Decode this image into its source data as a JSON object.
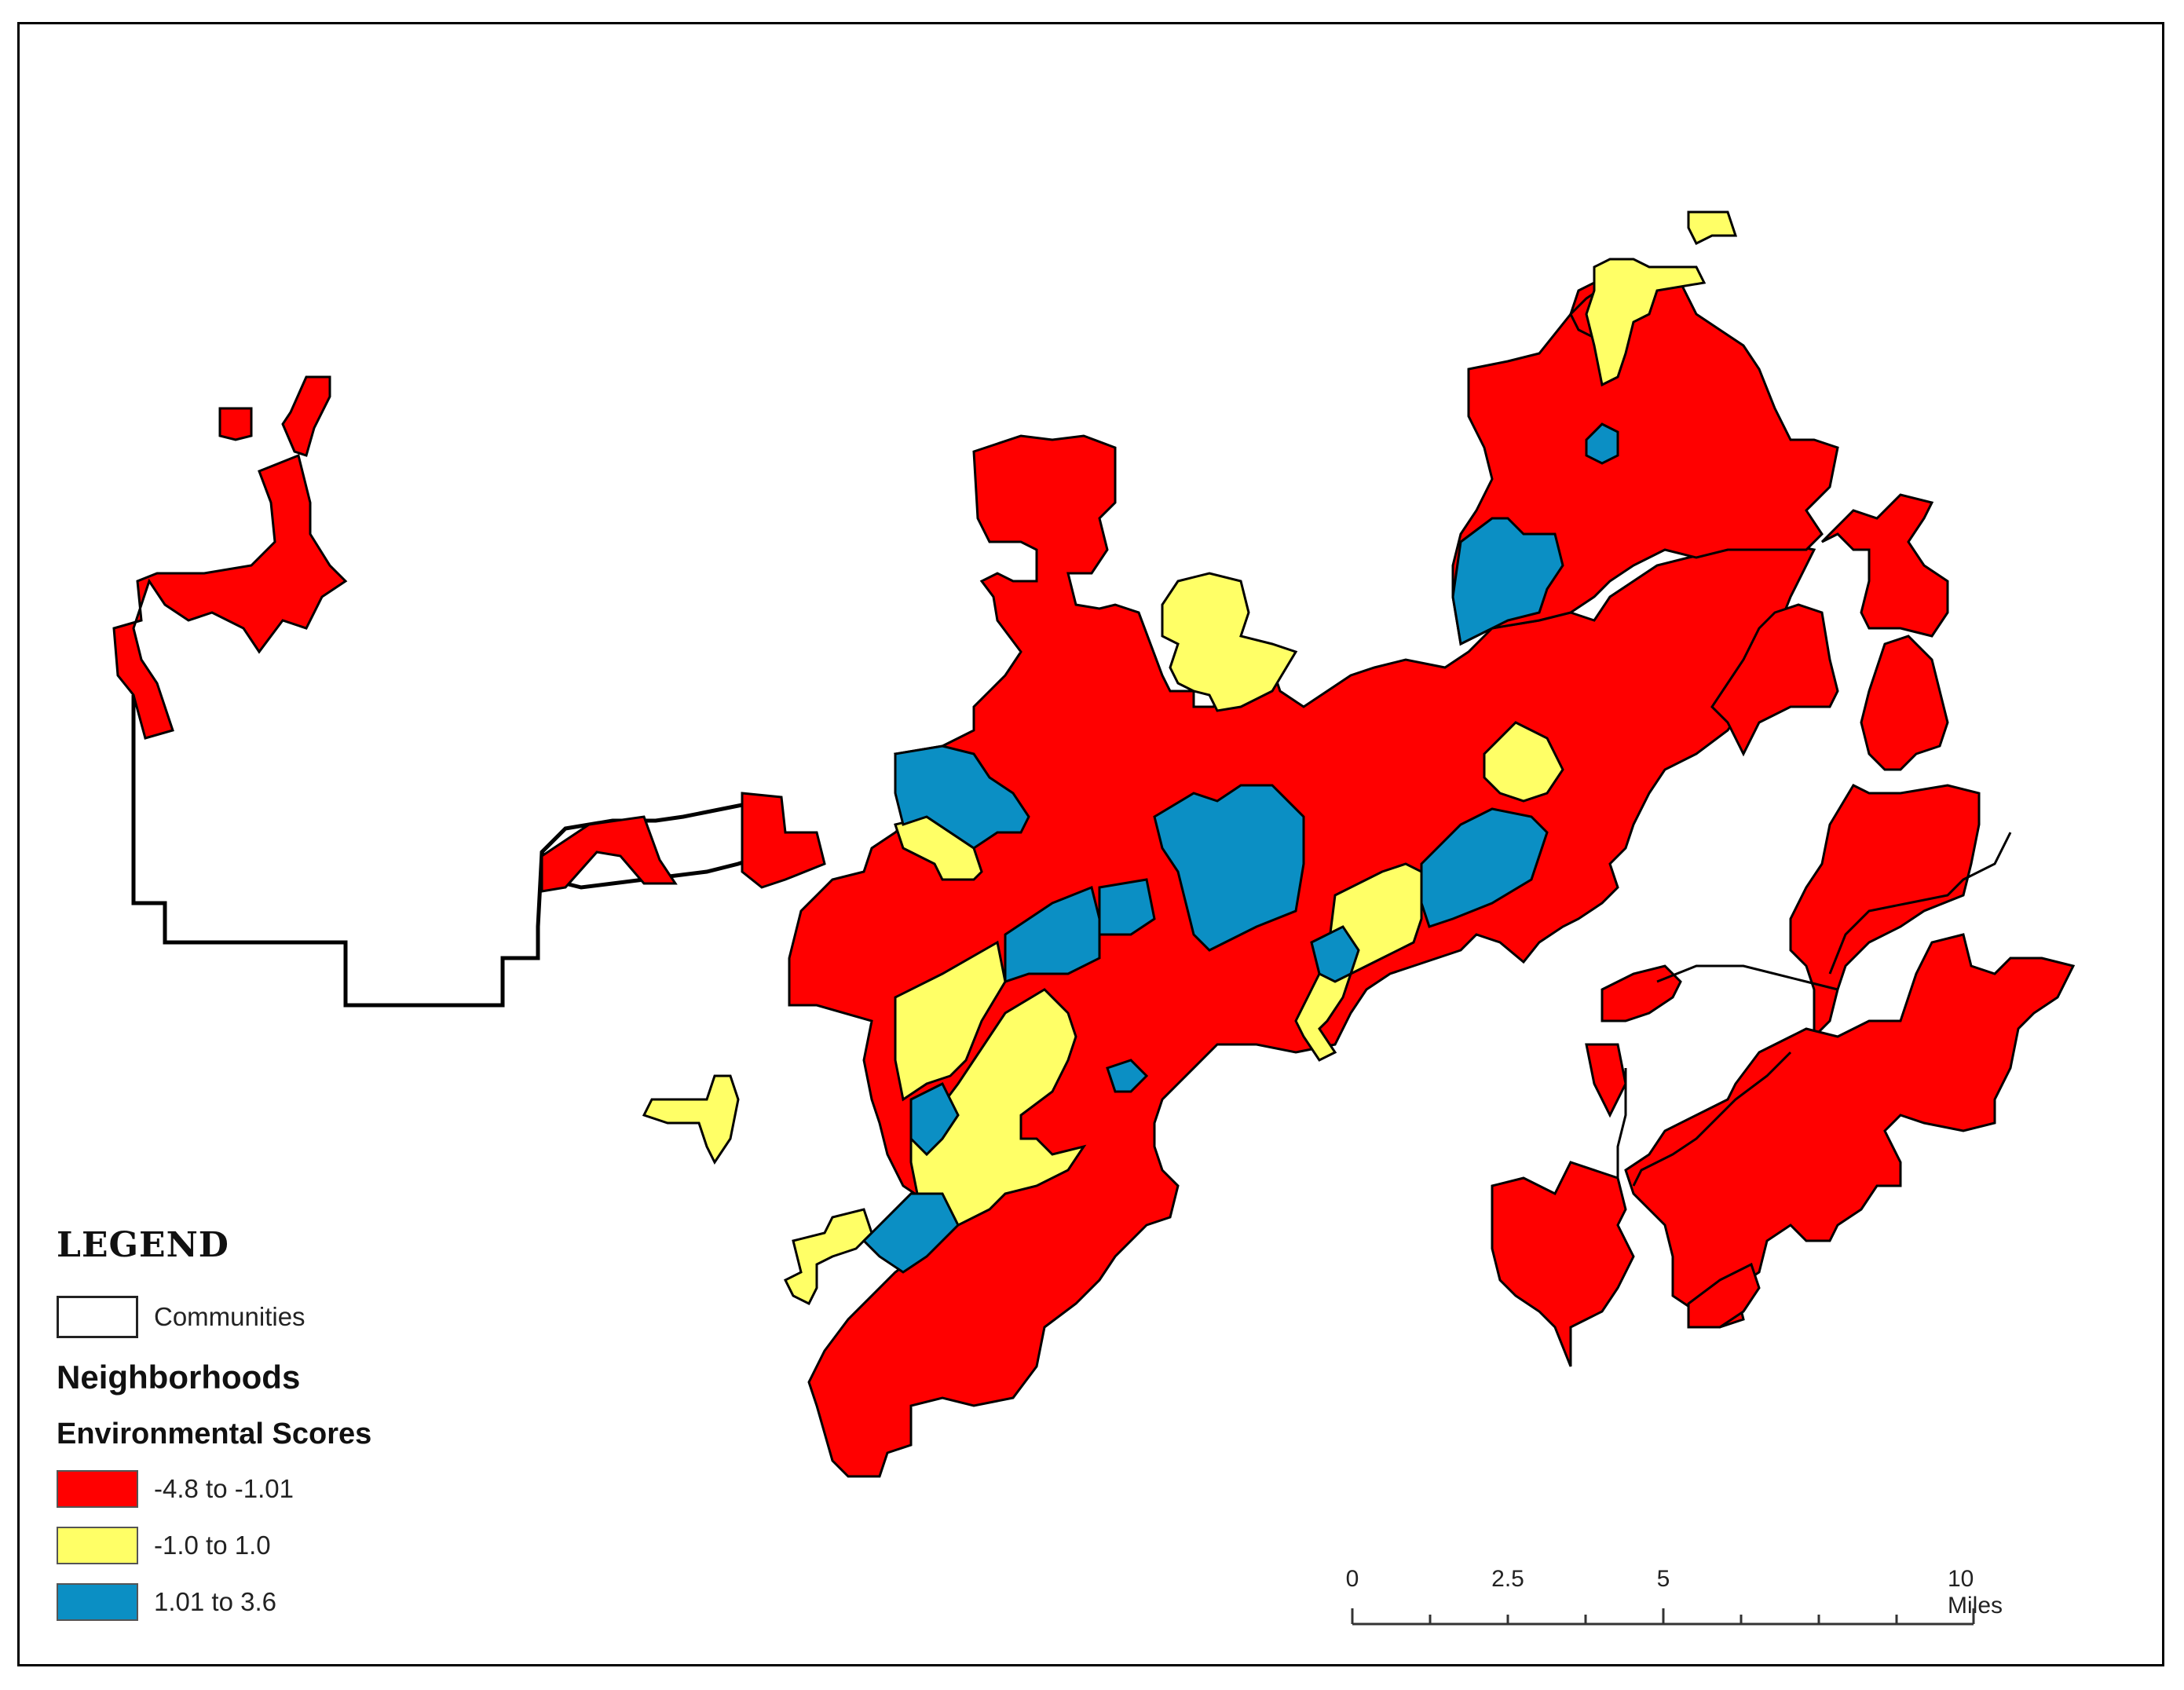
{
  "legend": {
    "title": "LEGEND",
    "communities_label": "Communities",
    "neighborhoods_heading": "Neighborhoods",
    "scores_heading": "Environmental Scores",
    "classes": [
      {
        "label": "-4.8 to -1.01",
        "color": "#ff0000"
      },
      {
        "label": "-1.0 to 1.0",
        "color": "#ffff66"
      },
      {
        "label": "1.01 to 3.6",
        "color": "#0b8fc4"
      }
    ]
  },
  "scale_bar": {
    "labels": [
      "0",
      "2.5",
      "5",
      "10 Miles"
    ]
  },
  "colors": {
    "low": "#ff0000",
    "mid": "#ffff66",
    "high": "#0b8fc4",
    "outline": "#000000"
  }
}
